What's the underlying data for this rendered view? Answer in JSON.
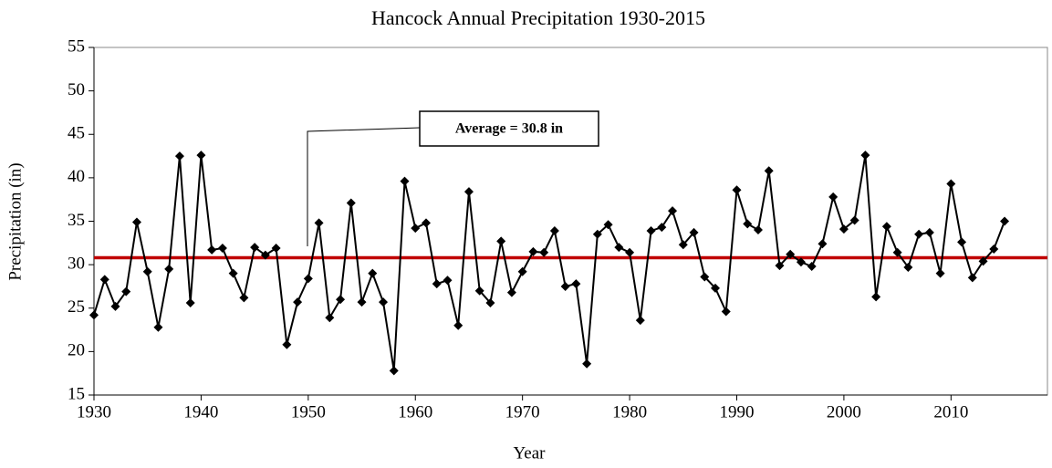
{
  "chart_data": {
    "type": "line",
    "title": "Hancock Annual Precipitation 1930-2015",
    "x_label": "Year",
    "y_label": "Precipitation (in)",
    "x": [
      1930,
      1931,
      1932,
      1933,
      1934,
      1935,
      1936,
      1937,
      1938,
      1939,
      1940,
      1941,
      1942,
      1943,
      1944,
      1945,
      1946,
      1947,
      1948,
      1949,
      1950,
      1951,
      1952,
      1953,
      1954,
      1955,
      1956,
      1957,
      1958,
      1959,
      1960,
      1961,
      1962,
      1963,
      1964,
      1965,
      1966,
      1967,
      1968,
      1969,
      1970,
      1971,
      1972,
      1973,
      1974,
      1975,
      1976,
      1977,
      1978,
      1979,
      1980,
      1981,
      1982,
      1983,
      1984,
      1985,
      1986,
      1987,
      1988,
      1989,
      1990,
      1991,
      1992,
      1993,
      1994,
      1995,
      1996,
      1997,
      1998,
      1999,
      2000,
      2001,
      2002,
      2003,
      2004,
      2005,
      2006,
      2007,
      2008,
      2009,
      2010,
      2011,
      2012,
      2013,
      2014,
      2015
    ],
    "series": [
      {
        "name": "Precipitation",
        "color": "#000000",
        "values": [
          24.2,
          28.3,
          25.2,
          26.9,
          34.9,
          29.2,
          22.8,
          29.5,
          42.5,
          25.6,
          42.6,
          31.7,
          31.9,
          29.0,
          26.2,
          32.0,
          31.1,
          31.9,
          20.8,
          25.7,
          28.4,
          34.8,
          23.9,
          26.0,
          37.1,
          25.7,
          29.0,
          25.7,
          17.8,
          39.6,
          34.2,
          34.8,
          27.8,
          28.2,
          23.0,
          38.4,
          27.0,
          25.6,
          32.7,
          26.8,
          29.2,
          31.5,
          31.4,
          33.9,
          27.5,
          27.8,
          18.6,
          33.5,
          34.6,
          32.0,
          31.4,
          23.6,
          33.9,
          34.3,
          36.2,
          32.3,
          33.7,
          28.6,
          27.3,
          24.6,
          38.6,
          34.7,
          34.0,
          40.8,
          29.9,
          31.2,
          30.3,
          29.8,
          32.4,
          37.8,
          34.1,
          35.1,
          42.6,
          26.3,
          34.4,
          31.4,
          29.7,
          33.5,
          33.7,
          29.0,
          39.3,
          32.6,
          28.5,
          30.4,
          31.8,
          35.0
        ]
      }
    ],
    "average": {
      "value": 30.8,
      "label": "Average = 30.8 in",
      "color": "#c00000"
    },
    "xlim": [
      1930,
      2019
    ],
    "xticks": [
      1930,
      1940,
      1950,
      1960,
      1970,
      1980,
      1990,
      2000,
      2010
    ],
    "ylim": [
      15,
      55
    ],
    "yticks": [
      15,
      20,
      25,
      30,
      35,
      40,
      45,
      50,
      55
    ]
  }
}
